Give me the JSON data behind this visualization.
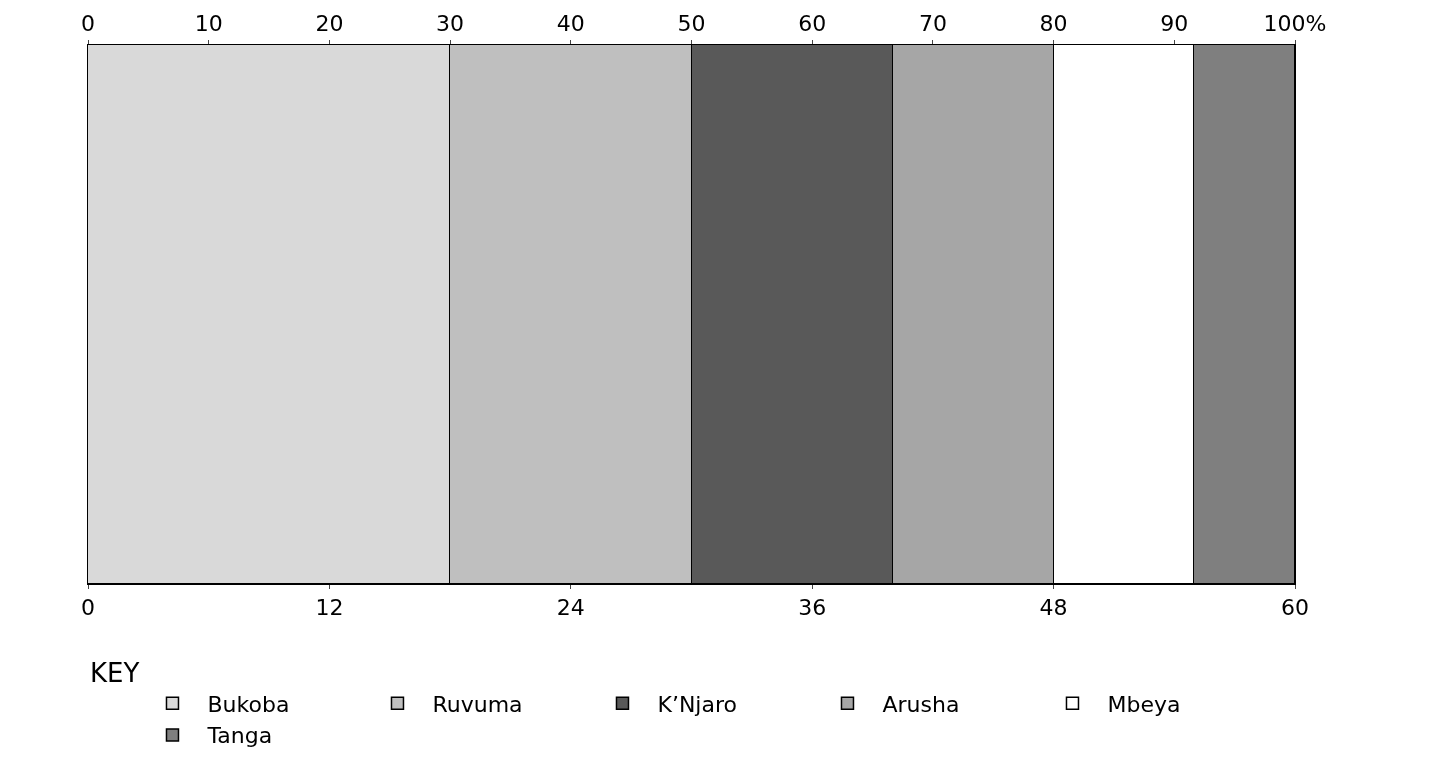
{
  "chart_data": {
    "type": "bar",
    "orientation": "horizontal",
    "stacked": true,
    "categories": [
      null
    ],
    "series": [
      {
        "name": "Bukoba",
        "color": "#d9d9d9",
        "values": [
          18
        ]
      },
      {
        "name": "Ruvuma",
        "color": "#bfbfbf",
        "values": [
          12
        ]
      },
      {
        "name": "K’Njaro",
        "color": "#595959",
        "values": [
          10
        ]
      },
      {
        "name": "Arusha",
        "color": "#a6a6a6",
        "values": [
          8
        ]
      },
      {
        "name": "Mbeya",
        "color": "#ffffff",
        "values": [
          7
        ]
      },
      {
        "name": "Tanga",
        "color": "#7f7f7f",
        "values": [
          5
        ]
      }
    ],
    "xlim": [
      0,
      60
    ],
    "xticks": [
      0,
      12,
      24,
      36,
      48,
      60
    ],
    "x2lim": [
      0,
      100
    ],
    "x2ticks": [
      0,
      10,
      20,
      30,
      40,
      50,
      60,
      70,
      80,
      90,
      {
        "value": 100,
        "label": "100%"
      }
    ],
    "tick_labels": "x",
    "legend": "bottom",
    "legend_title": "KEY"
  }
}
